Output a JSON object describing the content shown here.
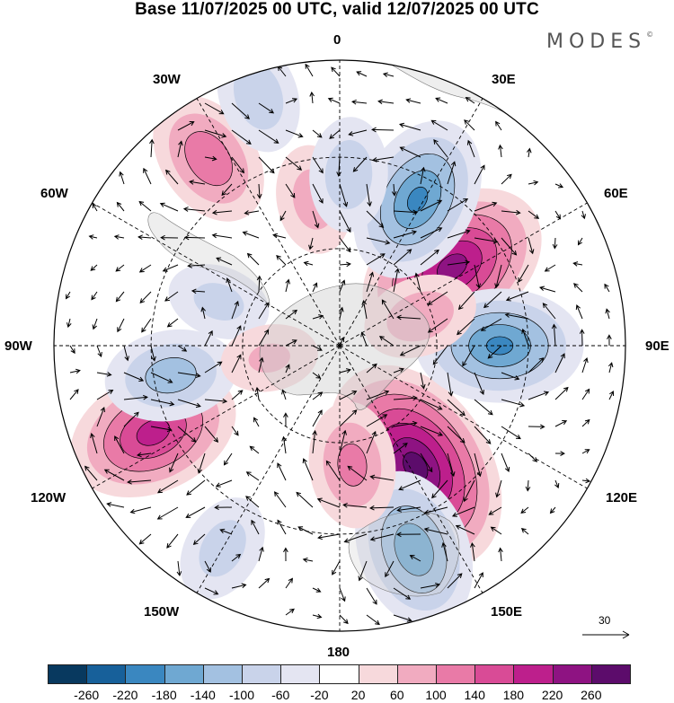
{
  "title": "Base 11/07/2025 00 UTC, valid 12/07/2025 00 UTC",
  "logo": "MODES",
  "logo_mark": "©",
  "longitude_labels": {
    "lon_0": "0",
    "lon_30e": "30E",
    "lon_60e": "60E",
    "lon_90e": "90E",
    "lon_120e": "120E",
    "lon_150e": "150E",
    "lon_180": "180",
    "lon_150w": "150W",
    "lon_120w": "120W",
    "lon_90w": "90W",
    "lon_60w": "60W",
    "lon_30w": "30W"
  },
  "reference_vector": "30",
  "colorbar": {
    "ticks": [
      "-260",
      "-220",
      "-180",
      "-140",
      "-100",
      "-60",
      "-20",
      "20",
      "60",
      "100",
      "140",
      "180",
      "220",
      "260"
    ],
    "colors": [
      "#08395f",
      "#17609a",
      "#3a87c0",
      "#6fa8d2",
      "#a3c1e1",
      "#c9d3ea",
      "#e4e5f2",
      "#ffffff",
      "#f7d9dc",
      "#f1abc0",
      "#e97aa7",
      "#d94b96",
      "#bd1f8c",
      "#8e1382",
      "#5c0c6b"
    ]
  },
  "anomalies": [
    {
      "lon": 148,
      "r": 0.5,
      "value": 270
    },
    {
      "lon": 55,
      "r": 0.48,
      "value": 230
    },
    {
      "lon": -115,
      "r": 0.72,
      "value": 190
    },
    {
      "lon": -35,
      "r": 0.8,
      "value": 130
    },
    {
      "lon": 90,
      "r": 0.56,
      "value": -180
    },
    {
      "lon": 28,
      "r": 0.58,
      "value": -180
    },
    {
      "lon": 160,
      "r": 0.76,
      "value": -170
    },
    {
      "lon": -100,
      "r": 0.6,
      "value": -120
    },
    {
      "lon": -18,
      "r": 0.92,
      "value": -90
    },
    {
      "lon": 174,
      "r": 0.42,
      "value": 110
    },
    {
      "lon": 70,
      "r": 0.3,
      "value": 90
    },
    {
      "lon": -10,
      "r": 0.52,
      "value": 80
    },
    {
      "lon": 3,
      "r": 0.6,
      "value": -90
    },
    {
      "lon": -70,
      "r": 0.45,
      "value": -70
    },
    {
      "lon": -150,
      "r": 0.82,
      "value": -80
    },
    {
      "lon": -100,
      "r": 0.25,
      "value": 60
    }
  ]
}
